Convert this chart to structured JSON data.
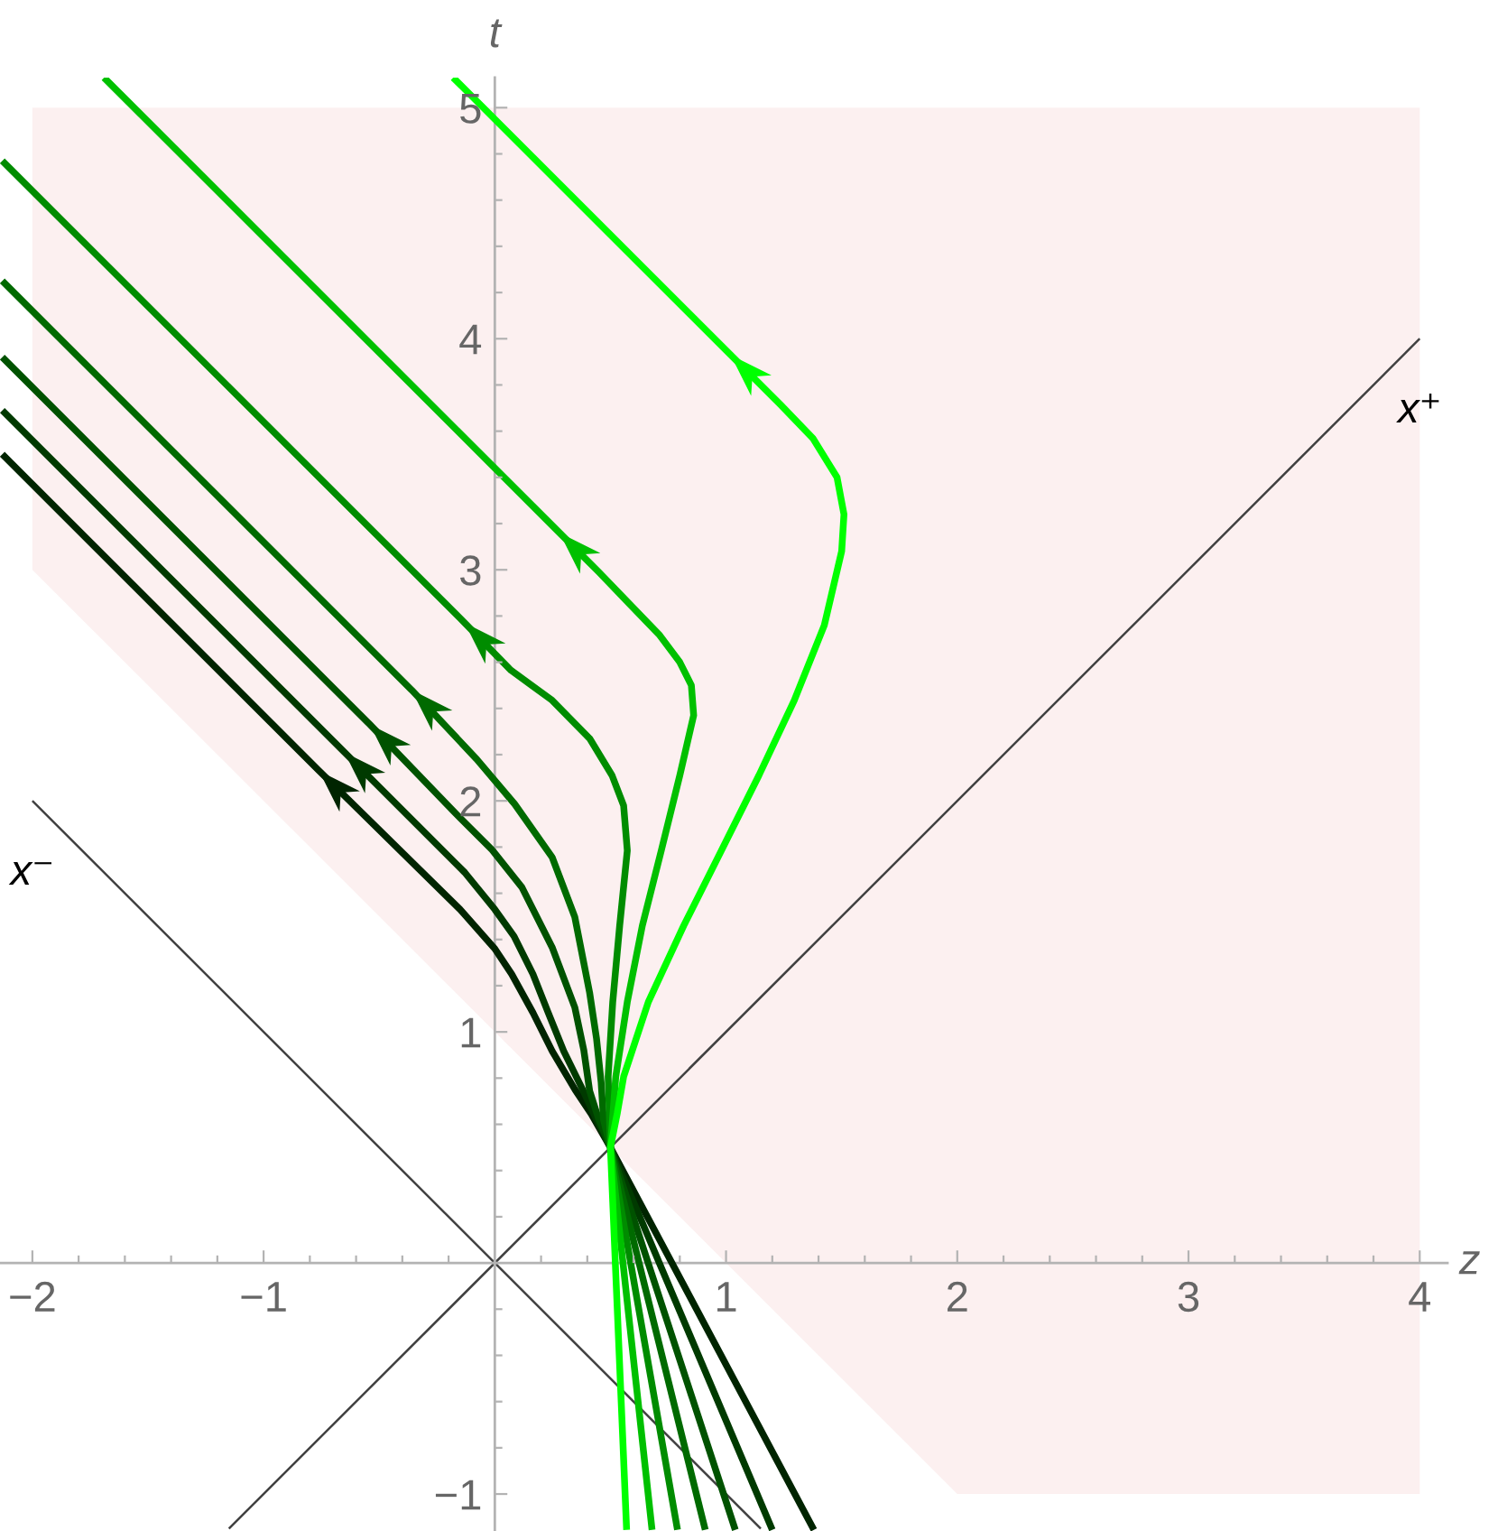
{
  "chart_data": {
    "type": "line",
    "xlabel": "z",
    "ylabel": "t",
    "xlim": [
      -2.14,
      4.12
    ],
    "ylim": [
      -1.16,
      5.13
    ],
    "xticks": [
      {
        "value": -2,
        "label": "−2"
      },
      {
        "value": -1,
        "label": "−1"
      },
      1,
      2,
      3,
      4,
      {
        "value": -1.8,
        "label": null
      },
      {
        "value": -1.6,
        "label": null
      },
      {
        "value": -1.4,
        "label": null
      },
      {
        "value": -1.2,
        "label": null
      },
      {
        "value": -0.8,
        "label": null
      },
      {
        "value": -0.6,
        "label": null
      },
      {
        "value": -0.4,
        "label": null
      },
      {
        "value": -0.2,
        "label": null
      },
      {
        "value": 0.2,
        "label": null
      },
      {
        "value": 0.4,
        "label": null
      },
      {
        "value": 0.6,
        "label": null
      },
      {
        "value": 0.8,
        "label": null
      },
      {
        "value": 1.2,
        "label": null
      },
      {
        "value": 1.4,
        "label": null
      },
      {
        "value": 1.6,
        "label": null
      },
      {
        "value": 1.8,
        "label": null
      },
      {
        "value": 2.2,
        "label": null
      },
      {
        "value": 2.4,
        "label": null
      },
      {
        "value": 2.6,
        "label": null
      },
      {
        "value": 2.8,
        "label": null
      },
      {
        "value": 3.2,
        "label": null
      },
      {
        "value": 3.4,
        "label": null
      },
      {
        "value": 3.6,
        "label": null
      },
      {
        "value": 3.8,
        "label": null
      }
    ],
    "yticks": [
      {
        "value": -1,
        "label": "−1"
      },
      1,
      2,
      3,
      4,
      5,
      {
        "value": -0.8,
        "label": null
      },
      {
        "value": -0.6,
        "label": null
      },
      {
        "value": -0.4,
        "label": null
      },
      {
        "value": -0.2,
        "label": null
      },
      {
        "value": 0.2,
        "label": null
      },
      {
        "value": 0.4,
        "label": null
      },
      {
        "value": 0.6,
        "label": null
      },
      {
        "value": 0.8,
        "label": null
      },
      {
        "value": 1.2,
        "label": null
      },
      {
        "value": 1.4,
        "label": null
      },
      {
        "value": 1.6,
        "label": null
      },
      {
        "value": 1.8,
        "label": null
      },
      {
        "value": 2.2,
        "label": null
      },
      {
        "value": 2.4,
        "label": null
      },
      {
        "value": 2.6,
        "label": null
      },
      {
        "value": 2.8,
        "label": null
      },
      {
        "value": 3.2,
        "label": null
      },
      {
        "value": 3.4,
        "label": null
      },
      {
        "value": 3.6,
        "label": null
      },
      {
        "value": 3.8,
        "label": null
      },
      {
        "value": 4.2,
        "label": null
      },
      {
        "value": 4.4,
        "label": null
      },
      {
        "value": 4.6,
        "label": null
      },
      {
        "value": 4.8,
        "label": null
      }
    ],
    "series": [
      {
        "type": "area",
        "color": "#fcf0f0",
        "x": [
          -2,
          2,
          4,
          4,
          -2
        ],
        "values": [
          3,
          -1,
          -1,
          5,
          5
        ]
      },
      {
        "color": "#404040",
        "x": [
          -1.15,
          4
        ],
        "values": [
          -1.15,
          4
        ]
      },
      {
        "color": "#404040",
        "x": [
          -2,
          1.15
        ],
        "values": [
          2,
          -1.15
        ]
      },
      {
        "color": "#002400",
        "x": [
          1.38,
          0.5,
          0.42,
          0.347,
          0.248,
          0.165,
          0.073,
          0,
          -0.15,
          -0.76,
          -2.13
        ],
        "values": [
          -1.155,
          0.5,
          0.64,
          0.75,
          0.917,
          1.083,
          1.25,
          1.36,
          1.53,
          2.13,
          3.5
        ]
      },
      {
        "color": "#003a00",
        "x": [
          1.2,
          0.5,
          0.44,
          0.38,
          0.298,
          0.231,
          0.165,
          0.083,
          0,
          -0.13,
          -0.65,
          -2.13
        ],
        "values": [
          -1.155,
          0.5,
          0.62,
          0.75,
          0.917,
          1.083,
          1.25,
          1.414,
          1.53,
          1.69,
          2.21,
          3.69
        ]
      },
      {
        "color": "#005200",
        "x": [
          1.04,
          0.5,
          0.45,
          0.41,
          0.385,
          0.346,
          0.248,
          0.117,
          -0.012,
          -0.174,
          -0.54,
          -2.13
        ],
        "values": [
          -1.155,
          0.5,
          0.62,
          0.745,
          0.92,
          1.106,
          1.366,
          1.626,
          1.788,
          1.95,
          2.33,
          3.92
        ]
      },
      {
        "color": "#006a00",
        "x": [
          0.91,
          0.5,
          0.47,
          0.46,
          0.44,
          0.41,
          0.346,
          0.248,
          0.086,
          -0.078,
          -0.36,
          -2.13
        ],
        "values": [
          -1.155,
          0.5,
          0.62,
          0.78,
          0.97,
          1.17,
          1.497,
          1.756,
          1.986,
          2.18,
          2.48,
          4.25
        ]
      },
      {
        "color": "#008c00",
        "x": [
          0.79,
          0.5,
          0.49,
          0.51,
          0.54,
          0.573,
          0.557,
          0.507,
          0.41,
          0.248,
          0.07,
          -0.13,
          -2.13
        ],
        "values": [
          -1.155,
          0.5,
          0.806,
          1.13,
          1.46,
          1.785,
          1.98,
          2.11,
          2.27,
          2.435,
          2.565,
          2.77,
          4.77
        ]
      },
      {
        "color": "#00c000",
        "x": [
          0.68,
          0.5,
          0.523,
          0.573,
          0.638,
          0.72,
          0.8,
          0.86,
          0.85,
          0.8,
          0.71,
          0.58,
          0.45,
          0.28,
          -1.69
        ],
        "values": [
          -1.155,
          0.5,
          0.806,
          1.13,
          1.46,
          1.785,
          2.11,
          2.37,
          2.5,
          2.6,
          2.72,
          2.855,
          2.99,
          3.16,
          5.13
        ]
      },
      {
        "color": "#00ff00",
        "x": [
          0.57,
          0.5,
          0.53,
          0.557,
          0.664,
          0.817,
          0.98,
          1.142,
          1.295,
          1.425,
          1.5,
          1.51,
          1.48,
          1.375,
          1.235,
          1.02,
          -0.18
        ],
        "values": [
          -1.155,
          0.5,
          0.65,
          0.806,
          1.13,
          1.46,
          1.785,
          2.11,
          2.435,
          2.76,
          3.08,
          3.24,
          3.4,
          3.57,
          3.715,
          3.93,
          5.13
        ]
      }
    ],
    "annotations": [
      {
        "text": "x⁺",
        "x": 4,
        "y": 4
      },
      {
        "text": "x⁻",
        "x": -2,
        "y": 2
      }
    ]
  }
}
